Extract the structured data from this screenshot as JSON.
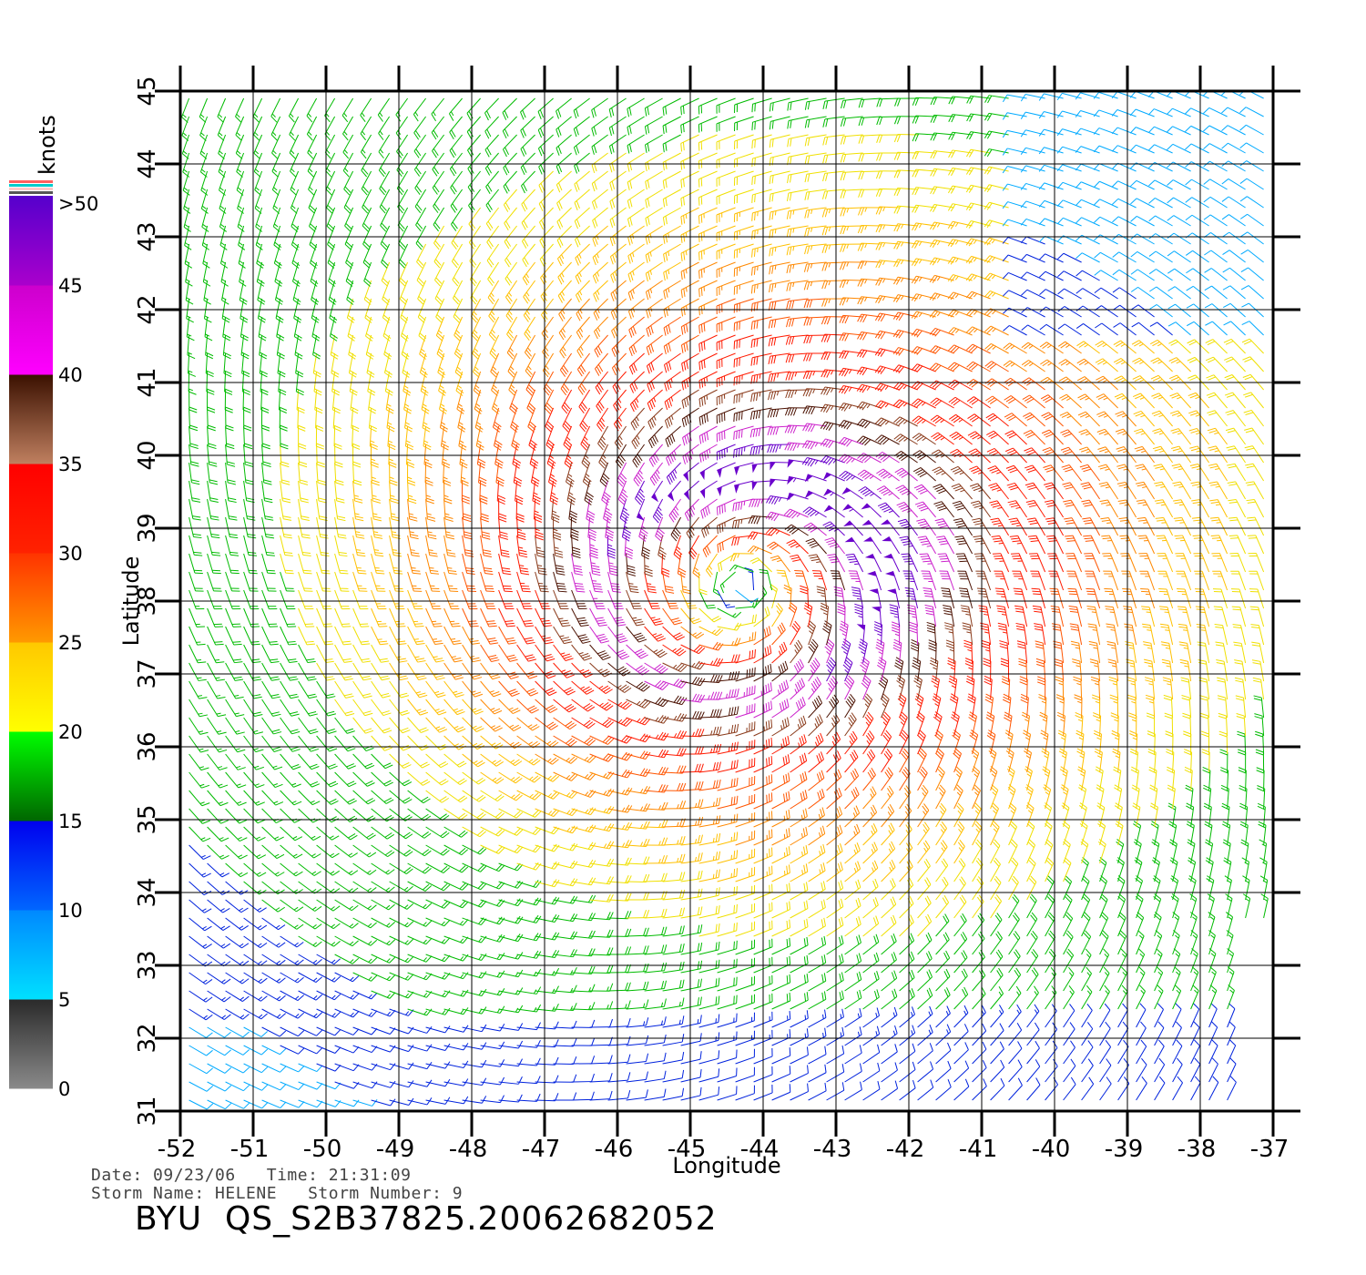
{
  "chart_data": {
    "type": "wind-barb-field",
    "xlabel": "Longitude",
    "ylabel": "Latitude",
    "xlim": [
      -52,
      -37
    ],
    "ylim": [
      31,
      45
    ],
    "x_ticks": [
      "-52",
      "-51",
      "-50",
      "-49",
      "-48",
      "-47",
      "-46",
      "-45",
      "-44",
      "-43",
      "-42",
      "-41",
      "-40",
      "-39",
      "-38",
      "-37"
    ],
    "y_ticks": [
      "31",
      "32",
      "33",
      "34",
      "35",
      "36",
      "37",
      "38",
      "39",
      "40",
      "41",
      "42",
      "43",
      "44",
      "45"
    ],
    "grid": true,
    "storm_center": {
      "lon": -44.3,
      "lat": 38.2
    },
    "max_wind_radius_deg": 1.6,
    "colorbar": {
      "unit_label": "knots",
      "tick_labels": [
        "0",
        "5",
        "10",
        "15",
        "20",
        "25",
        "30",
        "35",
        "40",
        "45",
        ">50"
      ],
      "bands": [
        {
          "from": 0,
          "to": 5,
          "colors": [
            "#8a8a8a",
            "#2a2a2a"
          ]
        },
        {
          "from": 5,
          "to": 10,
          "colors": [
            "#00e0ff",
            "#0088ff"
          ]
        },
        {
          "from": 10,
          "to": 15,
          "colors": [
            "#0066ff",
            "#0000ee"
          ]
        },
        {
          "from": 15,
          "to": 20,
          "colors": [
            "#006600",
            "#00ff00"
          ]
        },
        {
          "from": 20,
          "to": 25,
          "colors": [
            "#ffff00",
            "#ffc800"
          ]
        },
        {
          "from": 25,
          "to": 30,
          "colors": [
            "#ff9900",
            "#ff3300"
          ]
        },
        {
          "from": 30,
          "to": 35,
          "colors": [
            "#ff2200",
            "#ff0000"
          ]
        },
        {
          "from": 35,
          "to": 40,
          "colors": [
            "#c08060",
            "#3a1000"
          ]
        },
        {
          "from": 40,
          "to": 45,
          "colors": [
            "#ff00ff",
            "#cc00cc"
          ]
        },
        {
          "from": 45,
          "to": 50,
          "colors": [
            "#aa00cc",
            "#5500cc"
          ]
        }
      ]
    }
  },
  "footer": {
    "date_time": "Date: 09/23/06   Time: 21:31:09",
    "storm_info": "Storm Name: HELENE   Storm Number: 9",
    "title": "BYU  QS_S2B37825.20062682052"
  }
}
